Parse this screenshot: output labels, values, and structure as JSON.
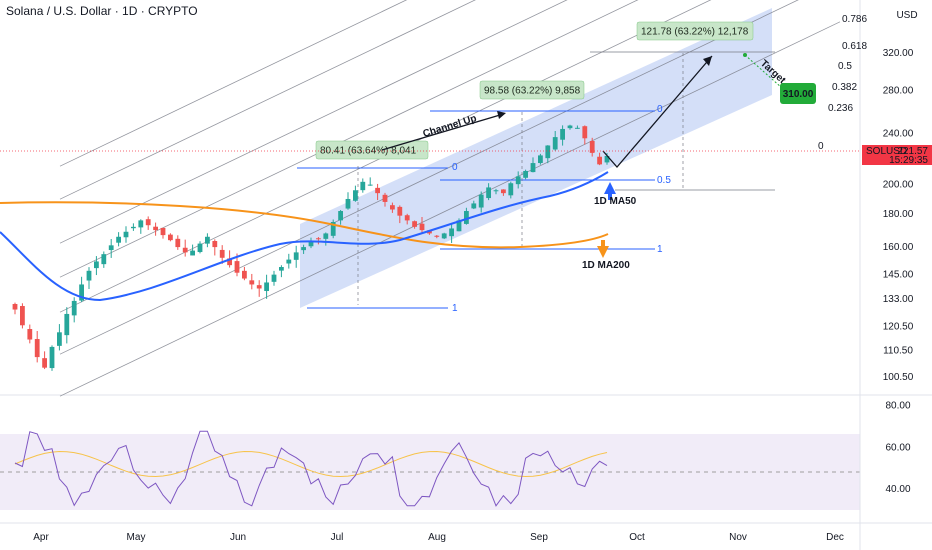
{
  "header": {
    "title": "Solana / U.S. Dollar · 1D · CRYPTO"
  },
  "axis": {
    "currency": "USD",
    "y_ticks": [
      "320.00",
      "280.00",
      "240.00",
      "200.00",
      "180.00",
      "160.00",
      "145.00",
      "133.00",
      "120.50",
      "110.50",
      "100.50"
    ],
    "rsi_ticks": [
      "80.00",
      "60.00",
      "40.00"
    ],
    "x_ticks": [
      "Apr",
      "May",
      "Jun",
      "Jul",
      "Aug",
      "Sep",
      "Oct",
      "Nov",
      "Dec"
    ]
  },
  "price_badge": {
    "symbol": "SOLUSD",
    "price": "221.57",
    "countdown": "15:29:35",
    "color": "#f23645"
  },
  "target_badge": {
    "value": "310.00",
    "color": "#22ab39"
  },
  "fib_channel_levels": [
    "0.786",
    "0.618",
    "0.5",
    "0.382",
    "0.236",
    "0"
  ],
  "fib_retracements": [
    "0",
    "0.5",
    "1"
  ],
  "measurements": [
    {
      "text": "80.41 (63.64%) 8,041"
    },
    {
      "text": "98.58 (63.22%) 9,858"
    },
    {
      "text": "121.78 (63.22%) 12,178"
    }
  ],
  "annotations": {
    "channel_up": "Channel Up",
    "target": "Target",
    "ma50": "1D MA50",
    "ma200": "1D MA200"
  },
  "colors": {
    "up": "#26a69a",
    "down": "#ef5350",
    "ma50": "#2962ff",
    "ma200": "#f7931a",
    "channel": "#c6d4f5",
    "rsi": "#7e57c2",
    "rsi_ma": "#f7c34a"
  },
  "chart_data": {
    "type": "candlestick",
    "title": "Solana / U.S. Dollar · 1D · CRYPTO",
    "xlabel": "",
    "ylabel": "USD",
    "scale": "log",
    "x": [
      "Apr",
      "May",
      "Jun",
      "Jul",
      "Aug",
      "Sep",
      "Oct",
      "Nov",
      "Dec"
    ],
    "ylim": [
      95,
      355
    ],
    "close_path": [
      128,
      121,
      115,
      108,
      104,
      112,
      118,
      126,
      132,
      140,
      147,
      152,
      156,
      161,
      166,
      169,
      172,
      176,
      173,
      170,
      167,
      164,
      160,
      157,
      158,
      162,
      166,
      160,
      154,
      150,
      146,
      143,
      140,
      138,
      141,
      145,
      149,
      153,
      157,
      160,
      163,
      165,
      168,
      175,
      182,
      190,
      196,
      202,
      200,
      194,
      188,
      183,
      179,
      176,
      172,
      170,
      168,
      166,
      168,
      171,
      176,
      182,
      187,
      193,
      198,
      196,
      194,
      201,
      206,
      210,
      216,
      222,
      230,
      237,
      244,
      247,
      245,
      236,
      224,
      215,
      221.57
    ],
    "last_price": 221.57,
    "target": 310.0,
    "ma50": {
      "name": "1D MA50"
    },
    "ma200": {
      "name": "1D MA200"
    },
    "rsi": {
      "ylim": [
        30,
        85
      ],
      "ticks": [
        80,
        60,
        40
      ]
    }
  }
}
